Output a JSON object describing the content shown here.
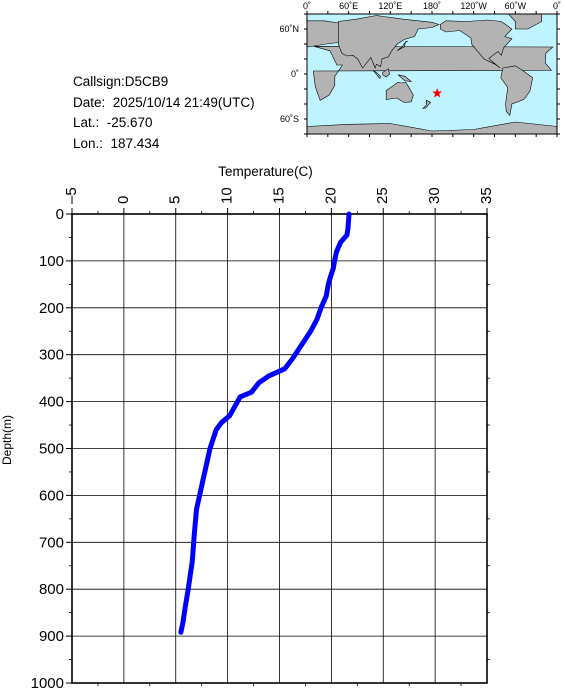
{
  "info": {
    "callsign": "Callsign:D5CB9",
    "date": "Date:  2025/10/14 21:49(UTC)",
    "lat": "Lat.:  -25.670",
    "lon": "Lon.:  187.434"
  },
  "map": {
    "lon_labels": [
      "0˚",
      "60˚E",
      "120˚E",
      "180˚",
      "120˚W",
      "60˚W",
      "0˚"
    ],
    "lat_labels": [
      "60˚N",
      "0˚",
      "60˚S"
    ],
    "ocean_color": "#bff3ff",
    "land_color": "#b3b3b3",
    "marker": {
      "lat": -25.67,
      "lon": 187.434,
      "color": "#ff0000",
      "icon": "star-icon"
    }
  },
  "chart_data": {
    "type": "line",
    "xlabel": "Temperature(C)",
    "ylabel": "Depth(m)",
    "xlim": [
      -5,
      35
    ],
    "ylim": [
      0,
      1000
    ],
    "x_ticks": [
      -5,
      0,
      5,
      10,
      15,
      20,
      25,
      30,
      35
    ],
    "y_ticks": [
      0,
      100,
      200,
      300,
      400,
      500,
      600,
      700,
      800,
      900,
      1000
    ],
    "grid": true,
    "line_color": "#0000ff",
    "series": [
      {
        "points": [
          [
            21.7,
            0
          ],
          [
            21.6,
            30
          ],
          [
            21.5,
            45
          ],
          [
            20.9,
            60
          ],
          [
            20.5,
            80
          ],
          [
            20.3,
            100
          ],
          [
            20.2,
            115
          ],
          [
            19.9,
            135
          ],
          [
            19.7,
            150
          ],
          [
            19.5,
            175
          ],
          [
            19.0,
            200
          ],
          [
            18.6,
            225
          ],
          [
            18.0,
            250
          ],
          [
            17.4,
            270
          ],
          [
            16.8,
            290
          ],
          [
            16.2,
            310
          ],
          [
            15.5,
            330
          ],
          [
            14.0,
            345
          ],
          [
            13.0,
            360
          ],
          [
            12.3,
            380
          ],
          [
            11.2,
            390
          ],
          [
            10.7,
            410
          ],
          [
            10.2,
            430
          ],
          [
            9.4,
            445
          ],
          [
            8.9,
            460
          ],
          [
            8.6,
            480
          ],
          [
            8.3,
            500
          ],
          [
            8.0,
            530
          ],
          [
            7.6,
            570
          ],
          [
            7.3,
            600
          ],
          [
            7.0,
            630
          ],
          [
            6.8,
            680
          ],
          [
            6.6,
            740
          ],
          [
            6.2,
            800
          ],
          [
            5.9,
            840
          ],
          [
            5.7,
            870
          ],
          [
            5.5,
            892
          ]
        ]
      }
    ]
  }
}
